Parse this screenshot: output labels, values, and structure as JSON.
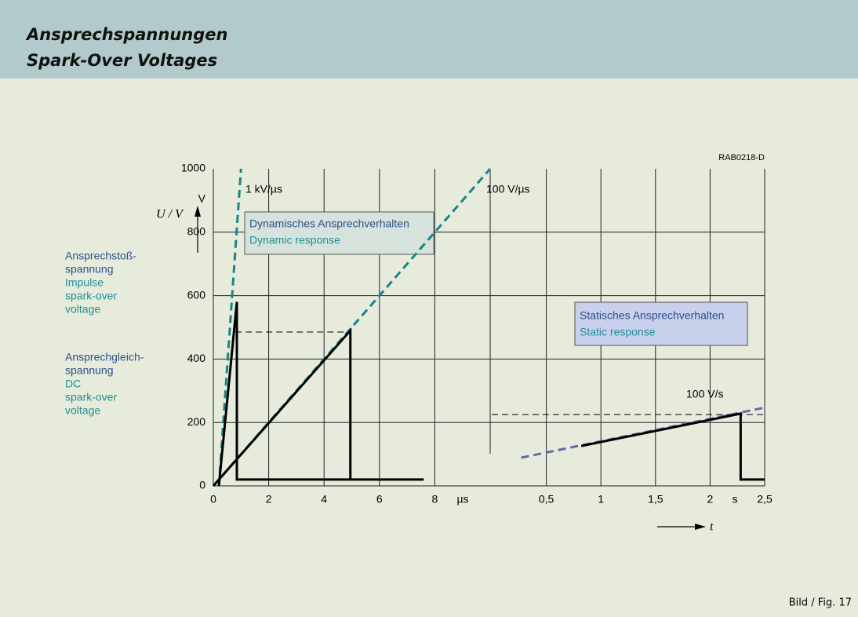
{
  "chart_data": {
    "type": "line",
    "title": "Ansprechspannungen",
    "subtitle": "Spark-Over Voltages",
    "ylabel": "U / V",
    "yunit": "V",
    "xlabel": "t",
    "code": "RAB0218-D",
    "figure": "Bild / Fig. 17",
    "ylim": [
      0,
      1000
    ],
    "yticks": [
      0,
      200,
      400,
      600,
      800,
      1000
    ],
    "grid": true,
    "left_labels": [
      {
        "text": "Ansprechstoß-",
        "color": "#2b4f8c"
      },
      {
        "text": "spannung",
        "color": "#2b4f8c"
      },
      {
        "text": "Impulse",
        "color": "#1f8f96"
      },
      {
        "text": "spark-over",
        "color": "#1f8f96"
      },
      {
        "text": "voltage",
        "color": "#1f8f96"
      },
      {
        "text": "Ansprechgleich-",
        "color": "#2b4f8c"
      },
      {
        "text": "spannung",
        "color": "#2b4f8c"
      },
      {
        "text": "DC",
        "color": "#1f8f96"
      },
      {
        "text": "spark-over",
        "color": "#1f8f96"
      },
      {
        "text": "voltage",
        "color": "#1f8f96"
      }
    ],
    "boxes": [
      {
        "lines": [
          "Dynamisches Ansprechverhalten",
          "Dynamic response"
        ],
        "fill": "#d6e3dc"
      },
      {
        "lines": [
          "Statisches Ansprechverhalten",
          "Static response"
        ],
        "fill": "#c9d0ec"
      }
    ],
    "annotations": [
      "1 kV/µs",
      "100 V/µs",
      "100 V/s"
    ],
    "panels": [
      {
        "xunit": "µs",
        "xlim": [
          0,
          10
        ],
        "xticks": [
          0,
          2,
          4,
          6,
          8
        ],
        "series": [
          {
            "color": "#17848a",
            "style": "dashed",
            "x": [
              0.2,
              1.0
            ],
            "values": [
              0,
              1000
            ]
          },
          {
            "color": "#17848a",
            "style": "dashed",
            "x": [
              0,
              10
            ],
            "values": [
              0,
              1000
            ]
          },
          {
            "color": "#000000",
            "style": "thin-dashed",
            "x": [
              0.8,
              4.95
            ],
            "values": [
              485,
              485
            ]
          },
          {
            "color": "#000000",
            "style": "solid",
            "x": [
              0.2,
              0.85,
              0.85,
              7.6
            ],
            "values": [
              0,
              580,
              20,
              20
            ]
          },
          {
            "color": "#000000",
            "style": "solid",
            "x": [
              0,
              4.95,
              4.95
            ],
            "values": [
              0,
              490,
              20
            ]
          }
        ]
      },
      {
        "xunit": "s",
        "xlim": [
          0,
          2.5
        ],
        "xticks": [
          {
            "value": 0.5,
            "label": "0,5"
          },
          1,
          {
            "value": 1.5,
            "label": "1,5"
          },
          2,
          {
            "value": 2.5,
            "label": "2,5"
          }
        ],
        "series": [
          {
            "color": "#000000",
            "style": "thin-dashed",
            "x": [
              0,
              2.5
            ],
            "values": [
              225,
              225
            ]
          },
          {
            "color": "#6a66b0",
            "style": "dashed",
            "x": [
              0.27,
              2.5
            ],
            "values": [
              89,
              247
            ]
          },
          {
            "color": "#000000",
            "style": "solid",
            "x": [
              0.82,
              2.28,
              2.28,
              2.5
            ],
            "values": [
              126,
              228,
              20,
              20
            ]
          }
        ]
      }
    ]
  }
}
